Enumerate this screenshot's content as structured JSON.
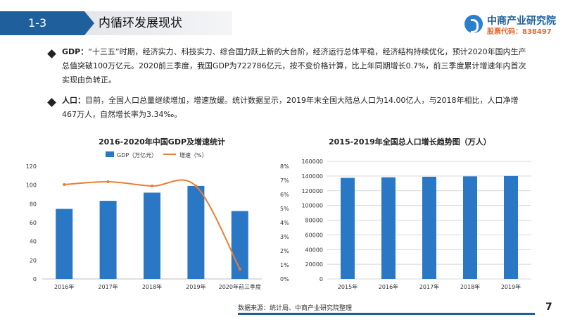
{
  "header": {
    "section_number": "1-3",
    "title": "内循环发展现状",
    "logo_name": "中商产业研究院",
    "logo_code": "股票代码：838497"
  },
  "paragraphs": [
    {
      "lead": "GDP：",
      "text": "“十三五”时期，经济实力、科技实力、综合国力跃上新的大台阶，经济运行总体平稳，经济结构持续优化，预计2020年国内生产总值突破100万亿元。2020前三季度，我国GDP为722786亿元，按不变价格计算，比上年同期增长0.7%，前三季度累计增速年内首次实现由负转正。"
    },
    {
      "lead": "人口：",
      "text": "目前，全国人口总量继续增加，增速放缓。统计数据显示，2019年末全国大陆总人口为14.00亿人，与2018年相比，人口净增467万人，自然增长率为3.34‰。"
    }
  ],
  "chart_data": [
    {
      "type": "bar",
      "title": "2016-2020年中国GDP及增速统计",
      "categories": [
        "2016年",
        "2017年",
        "2018年",
        "2019年",
        "2020年前三季度"
      ],
      "series": [
        {
          "name": "GDP（万亿元）",
          "kind": "bar",
          "axis": "left",
          "values": [
            74.6,
            83.2,
            91.9,
            99.1,
            72.3
          ]
        },
        {
          "name": "增速（%）",
          "kind": "line",
          "axis": "right",
          "values": [
            6.7,
            6.9,
            6.6,
            6.6,
            0.7
          ]
        }
      ],
      "left_axis": {
        "ylim": [
          0,
          120
        ],
        "ticks": [
          "0",
          "20",
          "40",
          "60",
          "80",
          "100",
          "120"
        ]
      },
      "right_axis": {
        "ylim": [
          0,
          8
        ],
        "ticks": [
          "0%",
          "1%",
          "2%",
          "3%",
          "4%",
          "5%",
          "6%",
          "7%",
          "8%"
        ]
      },
      "legend": "top",
      "grid": false,
      "colors": {
        "bar": "#2a78c5",
        "line": "#ed7d31"
      }
    },
    {
      "type": "bar",
      "title": "2015-2019年全国总人口增长趋势图（万人）",
      "categories": [
        "2015年",
        "2016年",
        "2017年",
        "2018年",
        "2019年"
      ],
      "values": [
        137462,
        138271,
        139008,
        139538,
        140005
      ],
      "ylim": [
        0,
        160000
      ],
      "ticks": [
        "0",
        "20000",
        "40000",
        "60000",
        "80000",
        "100000",
        "120000",
        "140000",
        "160000"
      ],
      "grid": true,
      "colors": {
        "bar": "#2a78c5",
        "grid": "#d9d9d9"
      }
    }
  ],
  "footer": {
    "source": "数据来源：统计局、中商产业研究院整理",
    "page": "7"
  }
}
